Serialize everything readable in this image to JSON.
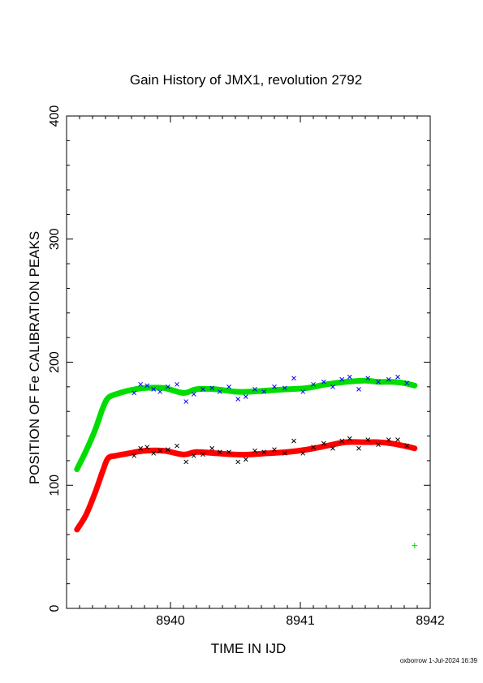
{
  "chart_data": {
    "type": "scatter",
    "title": "Gain History of JMX1, revolution 2792",
    "xlabel": "TIME IN IJD",
    "ylabel": "POSITION OF Fe CALIBRATION PEAKS",
    "xlim": [
      8939.2,
      8942.0
    ],
    "ylim": [
      0,
      400
    ],
    "x_ticks": [
      "8940",
      "8941",
      "8942"
    ],
    "y_ticks": [
      "0",
      "100",
      "200",
      "300",
      "400"
    ],
    "grid": false,
    "series": [
      {
        "color": "#00dd00",
        "marker": "smooth-line",
        "x": [
          8939.28,
          8939.35,
          8939.42,
          8939.48,
          8939.52,
          8939.58,
          8939.68,
          8939.8,
          8939.95,
          8940.1,
          8940.2,
          8940.35,
          8940.5,
          8940.6,
          8940.75,
          8940.9,
          8941.05,
          8941.2,
          8941.35,
          8941.5,
          8941.6,
          8941.7,
          8941.8,
          8941.88
        ],
        "y": [
          113,
          128,
          145,
          163,
          171,
          174,
          177,
          179,
          179,
          175,
          178,
          178,
          176,
          176,
          177,
          178,
          179,
          182,
          184,
          185,
          184,
          184,
          183,
          181
        ]
      },
      {
        "color": "#ff0000",
        "marker": "smooth-line",
        "x": [
          8939.28,
          8939.35,
          8939.42,
          8939.48,
          8939.52,
          8939.58,
          8939.68,
          8939.8,
          8939.95,
          8940.1,
          8940.2,
          8940.35,
          8940.5,
          8940.6,
          8940.75,
          8940.9,
          8941.05,
          8941.2,
          8941.35,
          8941.5,
          8941.6,
          8941.7,
          8941.8,
          8941.88
        ],
        "y": [
          64,
          76,
          94,
          112,
          122,
          124,
          126,
          128,
          128,
          125,
          127,
          126,
          125,
          125,
          126,
          127,
          129,
          132,
          135,
          135,
          135,
          134,
          132,
          130
        ]
      },
      {
        "color": "#0000ff",
        "marker": "x",
        "x": [
          8939.72,
          8939.77,
          8939.82,
          8939.87,
          8939.92,
          8939.98,
          8940.05,
          8940.12,
          8940.18,
          8940.25,
          8940.32,
          8940.38,
          8940.45,
          8940.52,
          8940.58,
          8940.65,
          8940.72,
          8940.8,
          8940.88,
          8940.95,
          8941.02,
          8941.1,
          8941.18,
          8941.25,
          8941.32,
          8941.38,
          8941.45,
          8941.52,
          8941.6,
          8941.68,
          8941.75,
          8941.82
        ],
        "y": [
          175,
          182,
          181,
          178,
          176,
          180,
          182,
          168,
          174,
          178,
          179,
          176,
          180,
          170,
          172,
          178,
          176,
          180,
          179,
          187,
          176,
          182,
          184,
          180,
          186,
          188,
          178,
          187,
          184,
          186,
          188,
          183
        ]
      },
      {
        "color": "#000000",
        "marker": "x",
        "x": [
          8939.72,
          8939.77,
          8939.82,
          8939.87,
          8939.92,
          8939.98,
          8940.05,
          8940.12,
          8940.18,
          8940.25,
          8940.32,
          8940.38,
          8940.45,
          8940.52,
          8940.58,
          8940.65,
          8940.72,
          8940.8,
          8940.88,
          8940.95,
          8941.02,
          8941.1,
          8941.18,
          8941.25,
          8941.32,
          8941.38,
          8941.45,
          8941.52,
          8941.6,
          8941.68,
          8941.75,
          8941.82
        ],
        "y": [
          124,
          130,
          131,
          126,
          128,
          129,
          132,
          119,
          124,
          125,
          130,
          127,
          127,
          119,
          121,
          128,
          127,
          129,
          126,
          136,
          126,
          131,
          134,
          130,
          136,
          138,
          130,
          137,
          133,
          137,
          137,
          132
        ]
      },
      {
        "color": "#00dd00",
        "marker": "+",
        "x": [
          8941.88
        ],
        "y": [
          51
        ]
      }
    ]
  },
  "footer": "oxborrow 1-Jul-2024 16:39"
}
